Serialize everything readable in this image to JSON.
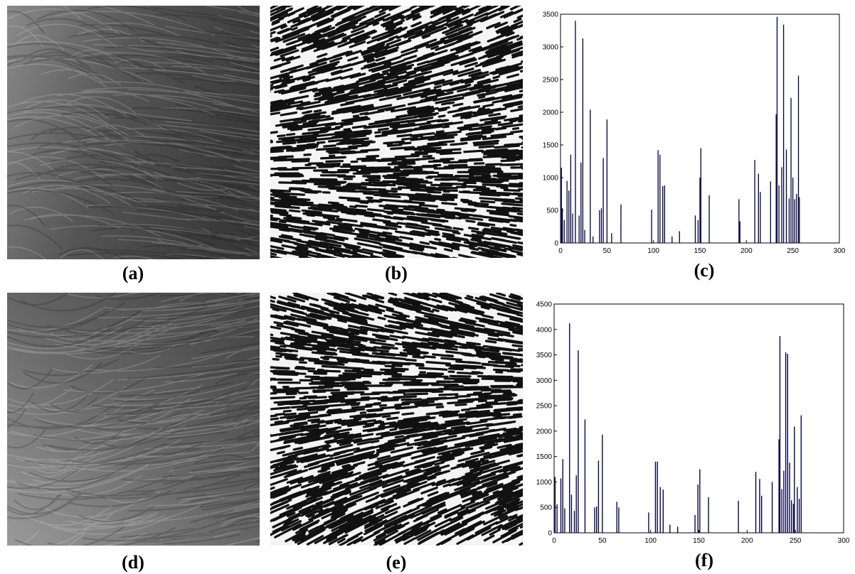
{
  "labels": [
    "(a)",
    "(b)",
    "(c)",
    "(d)",
    "(e)",
    "(f)"
  ],
  "chart_data": [
    {
      "type": "bar",
      "color": "#000040",
      "x": [
        1,
        2,
        4,
        7,
        9,
        11,
        13,
        16,
        20,
        22,
        24,
        26,
        32,
        35,
        42,
        44,
        46,
        50,
        55,
        65,
        98,
        105,
        107,
        110,
        112,
        120,
        128,
        145,
        148,
        150,
        151,
        160,
        192,
        193,
        209,
        213,
        215,
        226,
        232,
        233,
        235,
        238,
        240,
        243,
        246,
        248,
        250,
        252,
        254,
        256,
        257
      ],
      "values": [
        1150,
        530,
        350,
        950,
        800,
        1350,
        450,
        3400,
        420,
        1230,
        3130,
        200,
        2040,
        100,
        500,
        530,
        1300,
        1890,
        150,
        590,
        510,
        1420,
        1350,
        870,
        880,
        100,
        180,
        420,
        350,
        1000,
        1450,
        730,
        670,
        330,
        1270,
        1060,
        780,
        940,
        1970,
        3460,
        880,
        1160,
        3340,
        1430,
        680,
        2220,
        1000,
        670,
        750,
        2560,
        700
      ],
      "xlim": [
        0,
        300
      ],
      "ylim": [
        0,
        3500
      ],
      "xticks": [
        0,
        50,
        100,
        150,
        200,
        250,
        300
      ],
      "yticks": [
        0,
        500,
        1000,
        1500,
        2000,
        2500,
        3000,
        3500
      ]
    },
    {
      "type": "bar",
      "color": "#000040",
      "x": [
        1,
        3,
        7,
        9,
        11,
        16,
        18,
        21,
        23,
        25,
        32,
        42,
        44,
        46,
        50,
        65,
        67,
        98,
        105,
        107,
        110,
        113,
        120,
        128,
        146,
        149,
        151,
        160,
        191,
        209,
        213,
        215,
        226,
        233,
        234,
        236,
        238,
        240,
        242,
        244,
        246,
        248,
        249,
        252,
        254,
        256
      ],
      "values": [
        1100,
        560,
        1070,
        1450,
        480,
        4120,
        750,
        430,
        1130,
        3590,
        2230,
        500,
        520,
        1420,
        1930,
        610,
        500,
        400,
        1400,
        1400,
        900,
        850,
        160,
        120,
        350,
        950,
        1250,
        700,
        630,
        1200,
        1060,
        730,
        1000,
        1840,
        3870,
        860,
        1220,
        3550,
        3520,
        1380,
        640,
        570,
        2090,
        900,
        670,
        2310
      ],
      "xlim": [
        0,
        300
      ],
      "ylim": [
        0,
        4500
      ],
      "xticks": [
        0,
        50,
        100,
        150,
        200,
        250,
        300
      ],
      "yticks": [
        0,
        500,
        1000,
        1500,
        2000,
        2500,
        3000,
        3500,
        4000,
        4500
      ]
    }
  ]
}
